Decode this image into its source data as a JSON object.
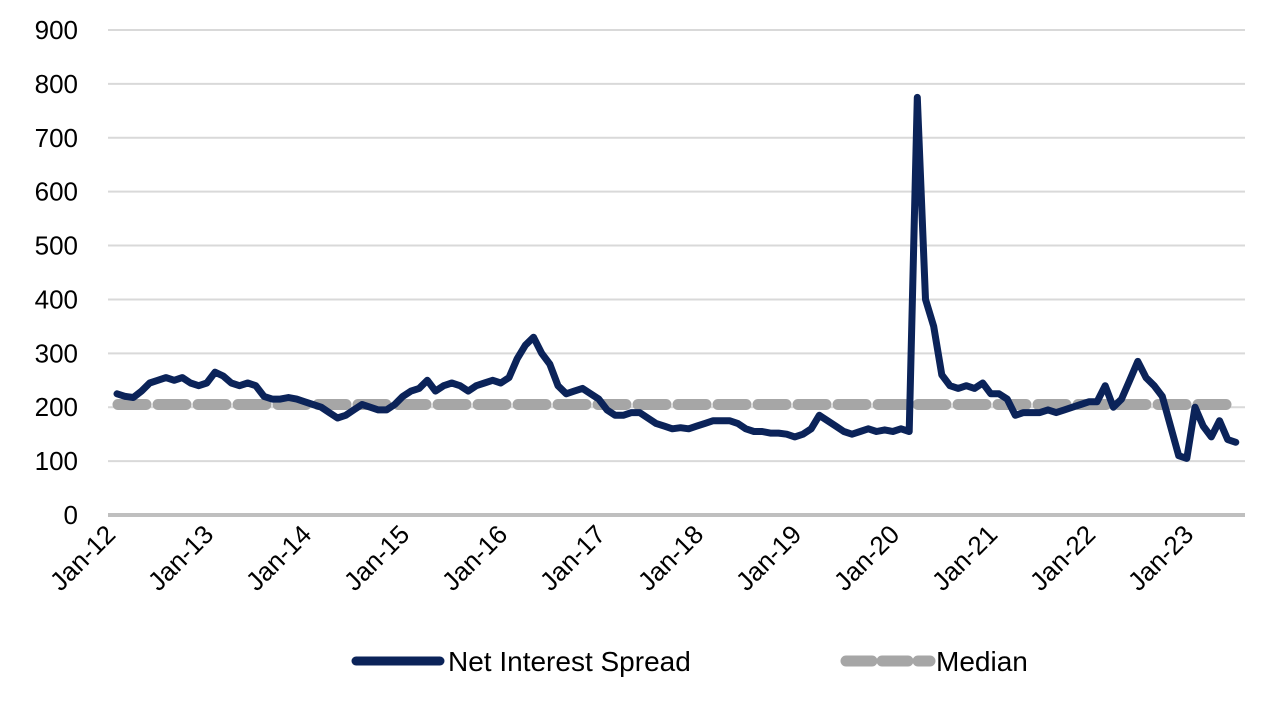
{
  "chart_data": {
    "type": "line",
    "title": "",
    "xlabel": "",
    "ylabel": "",
    "ylim": [
      0,
      900
    ],
    "yticks": [
      0,
      100,
      200,
      300,
      400,
      500,
      600,
      700,
      800,
      900
    ],
    "xtick_labels": [
      "Jan-12",
      "Jan-13",
      "Jan-14",
      "Jan-15",
      "Jan-16",
      "Jan-17",
      "Jan-18",
      "Jan-19",
      "Jan-20",
      "Jan-21",
      "Jan-22",
      "Jan-23"
    ],
    "x_start": "Jan-12",
    "x_end": "Jun-23",
    "grid": true,
    "legend_placement": "bottom",
    "colors": {
      "spread": "#0b2359",
      "median": "#a6a6a6",
      "grid": "#d9d9d9",
      "axis": "#bfbfbf"
    },
    "series": [
      {
        "name": "Net Interest Spread",
        "frequency": "monthly",
        "values": [
          225,
          220,
          218,
          230,
          245,
          250,
          255,
          250,
          255,
          245,
          240,
          245,
          265,
          258,
          245,
          240,
          245,
          240,
          220,
          215,
          215,
          218,
          215,
          210,
          205,
          200,
          190,
          180,
          185,
          195,
          205,
          200,
          195,
          195,
          205,
          220,
          230,
          235,
          250,
          230,
          240,
          245,
          240,
          230,
          240,
          245,
          250,
          245,
          255,
          290,
          315,
          330,
          300,
          280,
          240,
          225,
          230,
          235,
          225,
          215,
          195,
          185,
          185,
          190,
          190,
          180,
          170,
          165,
          160,
          162,
          160,
          165,
          170,
          175,
          175,
          175,
          170,
          160,
          155,
          155,
          152,
          152,
          150,
          145,
          150,
          160,
          185,
          175,
          165,
          155,
          150,
          155,
          160,
          155,
          158,
          155,
          160,
          155,
          775,
          400,
          350,
          260,
          240,
          235,
          240,
          235,
          245,
          225,
          225,
          215,
          185,
          190,
          190,
          190,
          195,
          190,
          195,
          200,
          205,
          210,
          210,
          240,
          200,
          215,
          250,
          285,
          255,
          240,
          220,
          165,
          110,
          105,
          200,
          165,
          145,
          175,
          140,
          135
        ]
      },
      {
        "name": "Median",
        "value": 205
      }
    ]
  }
}
